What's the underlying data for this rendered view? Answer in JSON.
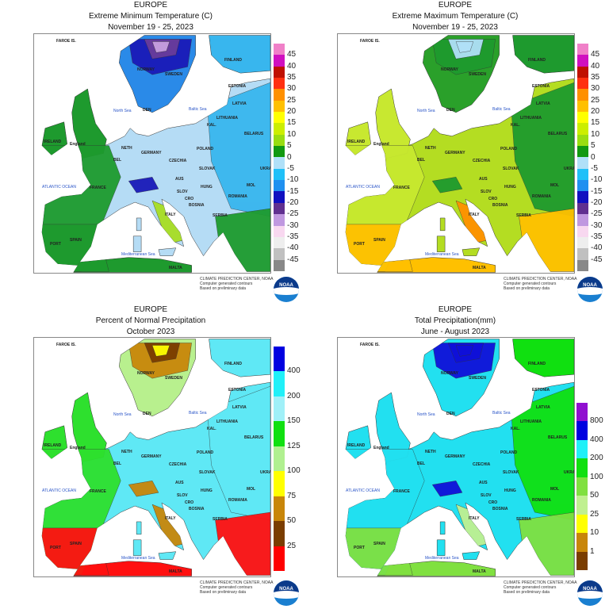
{
  "panels": [
    {
      "id": "min-temp",
      "title": [
        "EUROPE",
        "Extreme Minimum Temperature (C)",
        "November 19 - 25, 2023"
      ],
      "legend": {
        "colors": [
          "#f080c8",
          "#d010c0",
          "#c01000",
          "#ff3010",
          "#ff9000",
          "#ffc000",
          "#ffff00",
          "#ccee00",
          "#99dd11",
          "#119911",
          "#b0e0f8",
          "#20c0f8",
          "#2090f0",
          "#1010c0",
          "#603090",
          "#c098e0",
          "#f8d8f0",
          "#eeeeee",
          "#c0c0c0",
          "#888888"
        ],
        "labels": [
          "45",
          "40",
          "35",
          "30",
          "25",
          "20",
          "15",
          "10",
          "5",
          "0",
          "-5",
          "-10",
          "-15",
          "-20",
          "-25",
          "-30",
          "-35",
          "-40",
          "-45"
        ]
      },
      "colors": {
        "base": "#b5dcf5",
        "west": "#1e9a2e",
        "east": "#38b6ee",
        "north": "#2a8ae8",
        "blob1": "#1a1ab8",
        "blob2": "#6a3d9a",
        "blob3": "#c8a0e0",
        "south": "#1e9a2e",
        "accent": "#a8dd22"
      }
    },
    {
      "id": "max-temp",
      "title": [
        "EUROPE",
        "Extreme Maximum Temperature (C)",
        "November 19 - 25, 2023"
      ],
      "legend": {
        "colors": [
          "#f080c8",
          "#d010c0",
          "#c01000",
          "#ff3010",
          "#ff9000",
          "#ffc000",
          "#ffff00",
          "#ccee00",
          "#99dd11",
          "#119911",
          "#b0e0f8",
          "#20c0f8",
          "#2090f0",
          "#1010c0",
          "#603090",
          "#c098e0",
          "#f8d8f0",
          "#eeeeee",
          "#c0c0c0",
          "#888888"
        ],
        "labels": [
          "45",
          "40",
          "35",
          "30",
          "25",
          "20",
          "15",
          "10",
          "5",
          "0",
          "-5",
          "-10",
          "-15",
          "-20",
          "-25",
          "-30",
          "-35",
          "-40",
          "-45"
        ]
      },
      "colors": {
        "base": "#b4dd22",
        "west": "#c8e830",
        "east": "#1e9a2e",
        "north": "#2aa02a",
        "blob1": "#1e9a2e",
        "blob2": "#b0e0f8",
        "blob3": "#b0e0f8",
        "south": "#ffc000",
        "accent": "#ff9000"
      }
    },
    {
      "id": "pct-normal-precip",
      "title": [
        "EUROPE",
        "Percent of Normal Precipitation",
        "October 2023"
      ],
      "legend": {
        "colors": [
          "#0000e0",
          "#20f0f8",
          "#a0f0f8",
          "#10e010",
          "#b0f090",
          "#ffff00",
          "#c8860a",
          "#7a3d00",
          "#ff0000"
        ],
        "labels": [
          "400",
          "200",
          "150",
          "125",
          "100",
          "75",
          "50",
          "25"
        ]
      },
      "colors": {
        "base": "#5fe8f5",
        "west": "#2ee02e",
        "east": "#5fe8f5",
        "north": "#b8f08e",
        "blob1": "#c8860a",
        "blob2": "#7a3d00",
        "blob3": "#ffff00",
        "south": "#ff1010",
        "accent": "#c8860a"
      }
    },
    {
      "id": "total-precip",
      "title": [
        "EUROPE",
        "Total Precipitation(mm)",
        "June - August 2023"
      ],
      "legend": {
        "colors": [
          "#9010d0",
          "#0000e0",
          "#20f0f8",
          "#10e010",
          "#80e040",
          "#c0f090",
          "#ffff00",
          "#c8860a",
          "#7a3d00"
        ],
        "labels": [
          "800",
          "400",
          "200",
          "100",
          "50",
          "25",
          "10",
          "1"
        ]
      },
      "colors": {
        "base": "#22e0f0",
        "west": "#22e0f0",
        "east": "#10e010",
        "north": "#22e0f0",
        "blob1": "#1010d8",
        "blob2": "#1010d8",
        "blob3": "#1010d8",
        "south": "#80e040",
        "accent": "#c0f090"
      }
    }
  ],
  "map_labels": [
    "FAROE IS.",
    "North Sea",
    "Baltic Sea",
    "ATLANTIC OCEAN",
    "Mediterranean Sea",
    "MALTA",
    "England",
    "IRELAND",
    "FINLAND",
    "NORWAY",
    "SWEDEN",
    "ESTONIA",
    "LATVIA",
    "LITHUANIA",
    "BELARUS",
    "POLAND",
    "GERMANY",
    "DEN",
    "NETH",
    "BEL",
    "FRANCE",
    "CZECHIA",
    "SLOVAK",
    "AUS",
    "SLOV",
    "CRO",
    "BOSNIA",
    "HUNG",
    "ROMANIA",
    "MOL",
    "UKRAINE",
    "SERBIA",
    "ITALY",
    "SPAIN",
    "PORT",
    "KAL."
  ],
  "credits": [
    "CLIMATE PREDICTION CENTER, NOAA",
    "Computer generated contours",
    "Based on preliminary data"
  ],
  "logo_text": "NOAA"
}
